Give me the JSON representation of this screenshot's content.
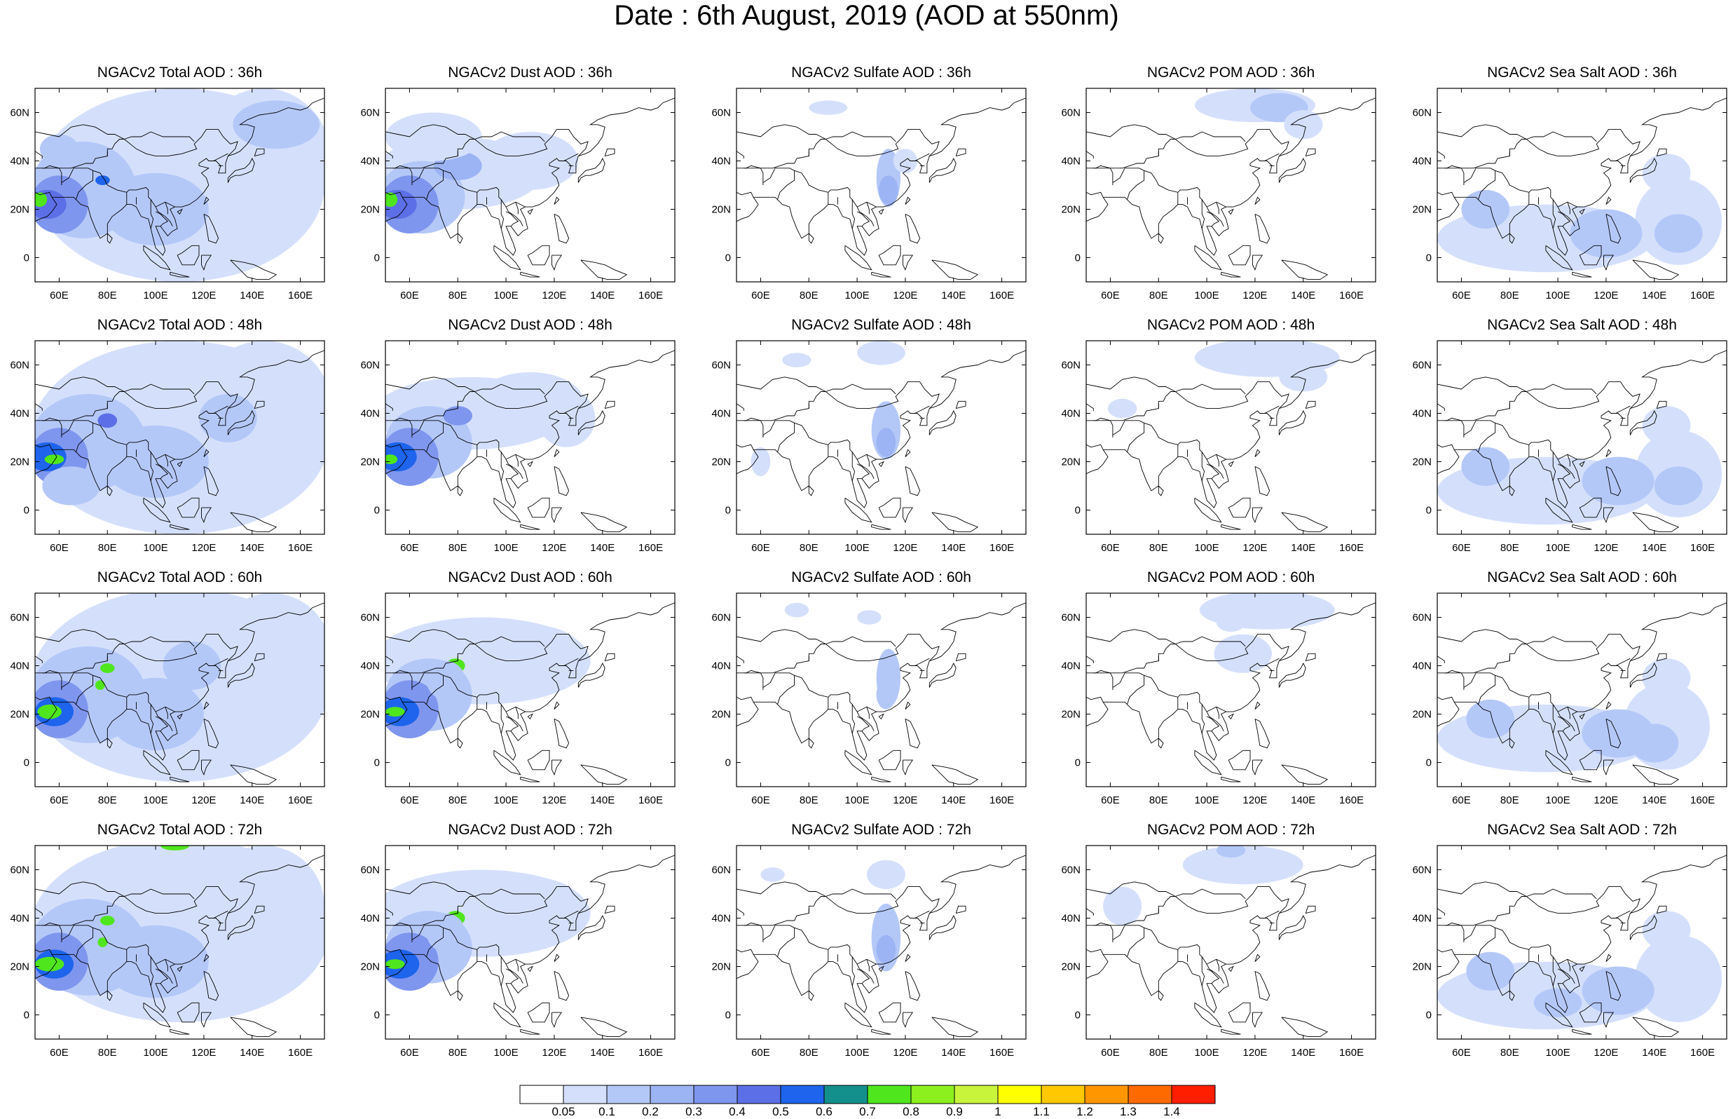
{
  "title": "Date : 6th August, 2019 (AOD at 550nm)",
  "rows": [
    {
      "forecast_hour": "36h",
      "panels": [
        {
          "title": "NGACv2 Total AOD : 36h",
          "species": "total"
        },
        {
          "title": "NGACv2 Dust AOD : 36h",
          "species": "dust"
        },
        {
          "title": "NGACv2 Sulfate AOD : 36h",
          "species": "sulfate"
        },
        {
          "title": "NGACv2 POM AOD : 36h",
          "species": "pom"
        },
        {
          "title": "NGACv2 Sea Salt AOD : 36h",
          "species": "seasalt"
        }
      ]
    },
    {
      "forecast_hour": "48h",
      "panels": [
        {
          "title": "NGACv2 Total AOD : 48h",
          "species": "total"
        },
        {
          "title": "NGACv2 Dust AOD : 48h",
          "species": "dust"
        },
        {
          "title": "NGACv2 Sulfate AOD : 48h",
          "species": "sulfate"
        },
        {
          "title": "NGACv2 POM AOD : 48h",
          "species": "pom"
        },
        {
          "title": "NGACv2 Sea Salt AOD : 48h",
          "species": "seasalt"
        }
      ]
    },
    {
      "forecast_hour": "60h",
      "panels": [
        {
          "title": "NGACv2 Total AOD : 60h",
          "species": "total"
        },
        {
          "title": "NGACv2 Dust AOD : 60h",
          "species": "dust"
        },
        {
          "title": "NGACv2 Sulfate AOD : 60h",
          "species": "sulfate"
        },
        {
          "title": "NGACv2 POM AOD : 60h",
          "species": "pom"
        },
        {
          "title": "NGACv2 Sea Salt AOD : 60h",
          "species": "seasalt"
        }
      ]
    },
    {
      "forecast_hour": "72h",
      "panels": [
        {
          "title": "NGACv2 Total AOD : 72h",
          "species": "total"
        },
        {
          "title": "NGACv2 Dust AOD : 72h",
          "species": "dust"
        },
        {
          "title": "NGACv2 Sulfate AOD : 72h",
          "species": "sulfate"
        },
        {
          "title": "NGACv2 POM AOD : 72h",
          "species": "pom"
        },
        {
          "title": "NGACv2 Sea Salt  AOD : 72h",
          "species": "seasalt"
        }
      ]
    }
  ],
  "map_axes": {
    "lon_range": [
      50,
      170
    ],
    "lat_range": [
      -10,
      70
    ],
    "lon_ticks": [
      "60E",
      "80E",
      "100E",
      "120E",
      "140E",
      "160E"
    ],
    "lat_ticks": [
      "60N",
      "40N",
      "20N",
      "0"
    ]
  },
  "colorbar": {
    "labels": [
      "0.05",
      "0.1",
      "0.2",
      "0.3",
      "0.4",
      "0.5",
      "0.6",
      "0.7",
      "0.8",
      "0.9",
      "1",
      "1.1",
      "1.2",
      "1.3",
      "1.4"
    ],
    "colors": [
      "#ffffff",
      "#d4e0fb",
      "#b4c8f8",
      "#9cb4f4",
      "#7f96ee",
      "#5c6fe6",
      "#1e64ec",
      "#14908c",
      "#50e61e",
      "#8cf01e",
      "#c8f53c",
      "#ffff00",
      "#ffc800",
      "#ff9600",
      "#ff6a00",
      "#ff1e00"
    ]
  }
}
